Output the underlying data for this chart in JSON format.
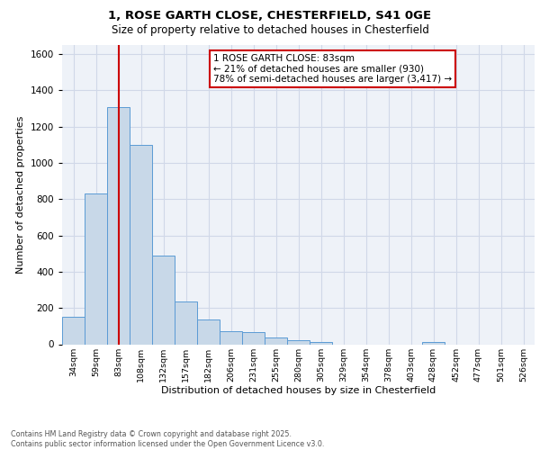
{
  "title_line1": "1, ROSE GARTH CLOSE, CHESTERFIELD, S41 0GE",
  "title_line2": "Size of property relative to detached houses in Chesterfield",
  "xlabel": "Distribution of detached houses by size in Chesterfield",
  "ylabel": "Number of detached properties",
  "bin_labels": [
    "34sqm",
    "59sqm",
    "83sqm",
    "108sqm",
    "132sqm",
    "157sqm",
    "182sqm",
    "206sqm",
    "231sqm",
    "255sqm",
    "280sqm",
    "305sqm",
    "329sqm",
    "354sqm",
    "378sqm",
    "403sqm",
    "428sqm",
    "452sqm",
    "477sqm",
    "501sqm",
    "526sqm"
  ],
  "bar_values": [
    150,
    830,
    1310,
    1100,
    490,
    235,
    135,
    70,
    65,
    38,
    22,
    12,
    0,
    0,
    0,
    0,
    12,
    0,
    0,
    0,
    0
  ],
  "bar_color": "#c8d8e8",
  "bar_edge_color": "#5b9bd5",
  "annotation_line_x_label": "83sqm",
  "annotation_line_color": "#cc0000",
  "annotation_text": "1 ROSE GARTH CLOSE: 83sqm\n← 21% of detached houses are smaller (930)\n78% of semi-detached houses are larger (3,417) →",
  "annotation_box_color": "#ffffff",
  "annotation_box_edge_color": "#cc0000",
  "ylim": [
    0,
    1650
  ],
  "yticks": [
    0,
    200,
    400,
    600,
    800,
    1000,
    1200,
    1400,
    1600
  ],
  "footer_text": "Contains HM Land Registry data © Crown copyright and database right 2025.\nContains public sector information licensed under the Open Government Licence v3.0.",
  "grid_color": "#d0d8e8",
  "background_color": "#eef2f8"
}
